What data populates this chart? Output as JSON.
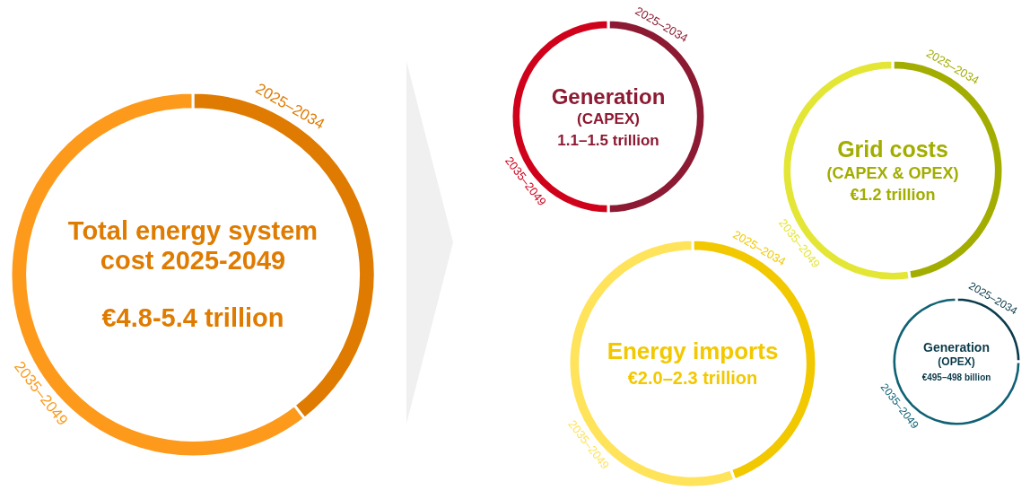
{
  "chart_data": [
    {
      "type": "donut",
      "title": "Total energy system cost 2025-2049",
      "annotations": [
        "€4.8-5.4 trillion"
      ],
      "categories": [
        "2025–2034",
        "2035–2049"
      ],
      "values": [
        39.5,
        60.5
      ],
      "colors": [
        "#df7b00",
        "#fd9a1c"
      ],
      "legend": false
    },
    {
      "type": "donut",
      "title": "Generation",
      "subtitle": "(CAPEX)",
      "annotations": [
        "1.1–1.5 trillion"
      ],
      "categories": [
        "2025–2034",
        "2035–2049"
      ],
      "values": [
        50,
        50
      ],
      "colors": [
        "#8c1a32",
        "#d0021b"
      ],
      "legend": false
    },
    {
      "type": "donut",
      "title": "Grid costs",
      "subtitle": "(CAPEX & OPEX)",
      "annotations": [
        "€1.2 trillion"
      ],
      "categories": [
        "2025–2034",
        "2035–2049"
      ],
      "values": [
        47.5,
        52.5
      ],
      "colors": [
        "#a2ad00",
        "#e4e636"
      ],
      "legend": false
    },
    {
      "type": "donut",
      "title": "Energy imports",
      "annotations": [
        "€2.0–2.3 trillion"
      ],
      "categories": [
        "2025–2034",
        "2035–2049"
      ],
      "values": [
        44.5,
        55.5
      ],
      "colors": [
        "#f2c800",
        "#ffe35a"
      ],
      "legend": false
    },
    {
      "type": "donut",
      "title": "Generation",
      "subtitle": "(OPEX)",
      "annotations": [
        "€495–498 billion"
      ],
      "categories": [
        "2025–2034",
        "2035–2049"
      ],
      "values": [
        25,
        75
      ],
      "colors": [
        "#0b3a4a",
        "#0f6175"
      ],
      "legend": false
    }
  ]
}
